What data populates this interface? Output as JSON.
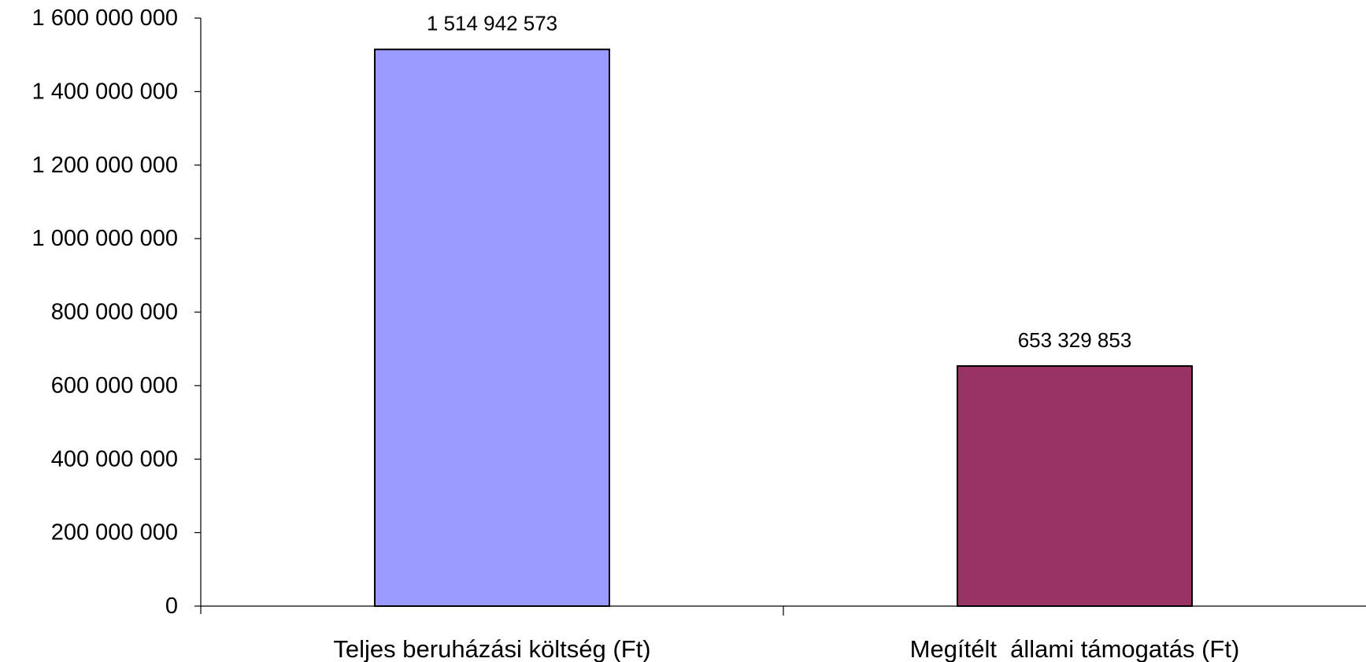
{
  "chart_data": {
    "type": "bar",
    "categories": [
      "Teljes beruházási költség (Ft)",
      "Megítélt  állami támogatás (Ft)"
    ],
    "values": [
      1514942573,
      653329853
    ],
    "data_labels": [
      "1 514 942 573",
      "653 329 853"
    ],
    "bar_colors": [
      "#9999ff",
      "#993366"
    ],
    "ylim": [
      0,
      1600000000
    ],
    "yticks": [
      0,
      200000000,
      400000000,
      600000000,
      800000000,
      1000000000,
      1200000000,
      1400000000,
      1600000000
    ],
    "ytick_labels": [
      "0",
      "200 000 000",
      "400 000 000",
      "600 000 000",
      "800 000 000",
      "1 000 000 000",
      "1 200 000 000",
      "1 400 000 000",
      "1 600 000 000"
    ],
    "title": "",
    "xlabel": "",
    "ylabel": "",
    "grid": false,
    "legend": "none"
  }
}
